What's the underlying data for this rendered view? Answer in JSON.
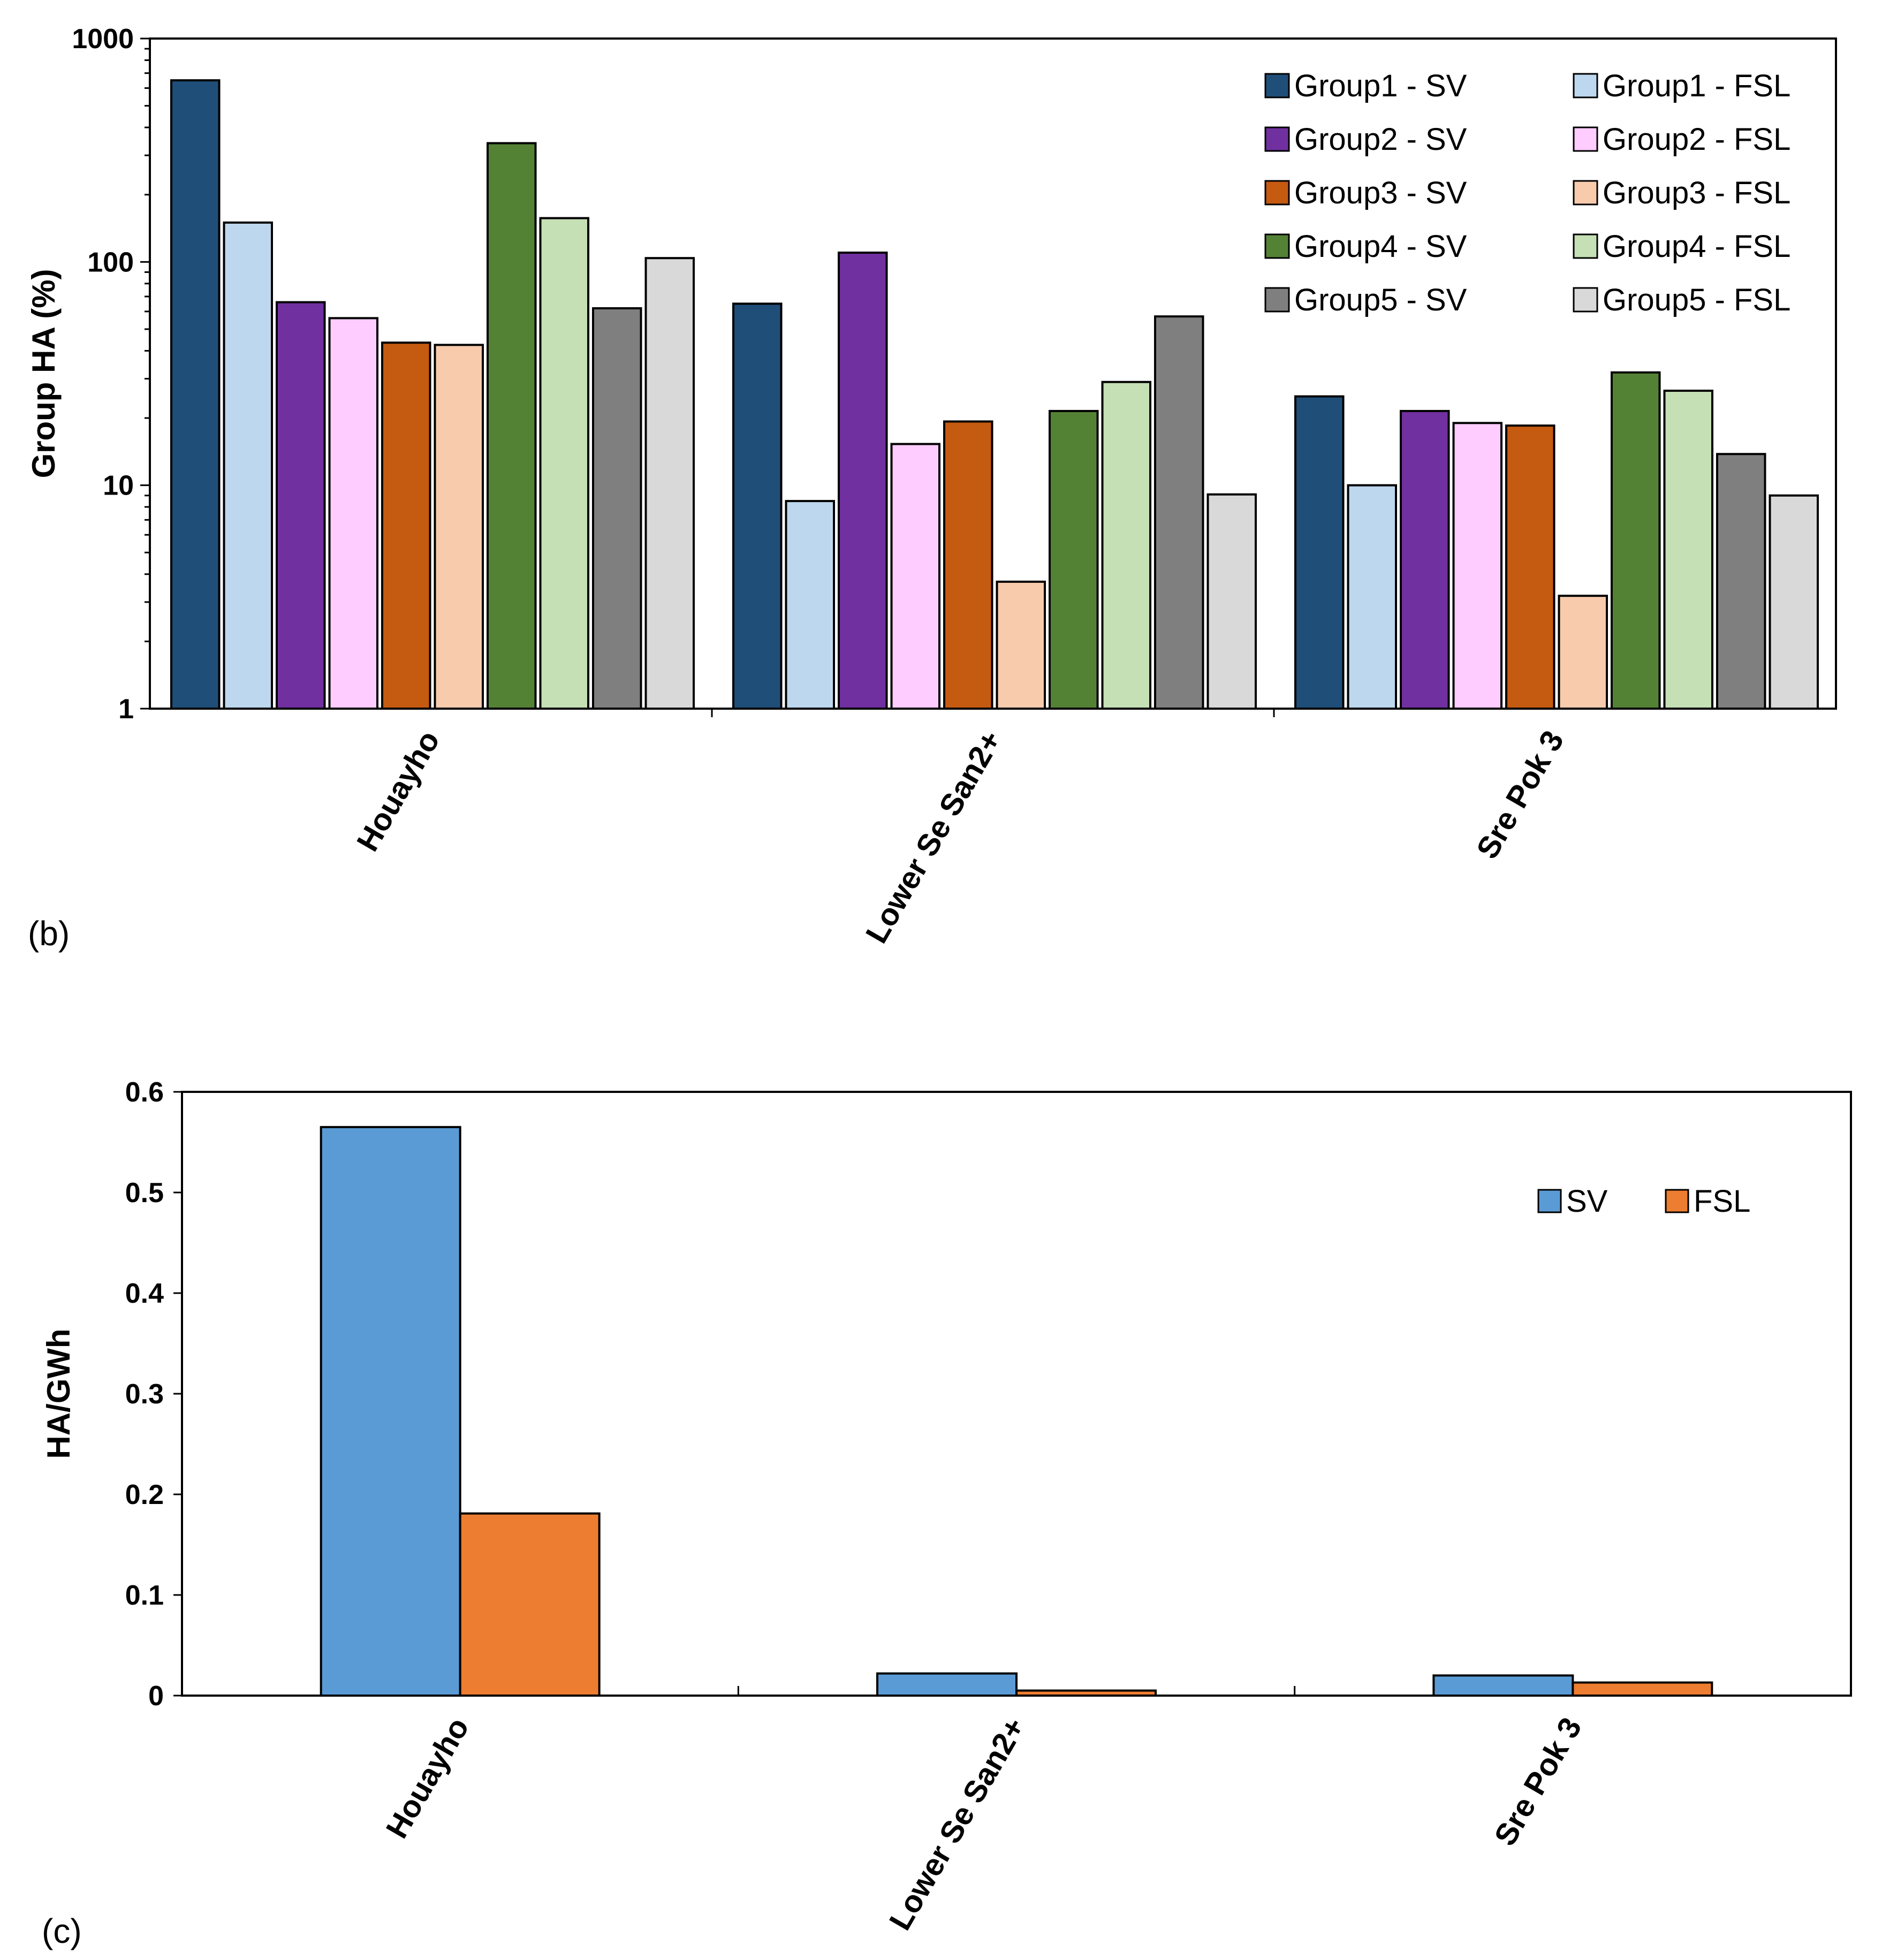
{
  "chart_data": [
    {
      "type": "bar",
      "panel_label": "(b)",
      "ylabel": "Group HA (%)",
      "yscale": "log",
      "ylim": [
        1,
        1000
      ],
      "yticks": [
        "1",
        "10",
        "100",
        "1000"
      ],
      "categories": [
        "Houayho",
        "Lower Se San2+",
        "Sre Pok 3"
      ],
      "legend_position": "top-right",
      "series": [
        {
          "name": "Group1  - SV",
          "color": "#1F4E79",
          "values": [
            650,
            65,
            25
          ]
        },
        {
          "name": "Group1  - FSL",
          "color": "#BDD7EE",
          "values": [
            150,
            8.5,
            10
          ]
        },
        {
          "name": "Group2   - SV",
          "color": "#7030A0",
          "values": [
            66,
            110,
            21.5
          ]
        },
        {
          "name": "Group2   - FSL",
          "color": "#FFCCFF",
          "values": [
            56,
            15.3,
            19
          ]
        },
        {
          "name": "Group3  - SV",
          "color": "#C55A11",
          "values": [
            43.5,
            19.3,
            18.5
          ]
        },
        {
          "name": "Group3  - FSL",
          "color": "#F8CBAD",
          "values": [
            42.5,
            3.7,
            3.2
          ]
        },
        {
          "name": "Group4  - SV",
          "color": "#548235",
          "values": [
            340,
            21.5,
            32
          ]
        },
        {
          "name": "Group4  - FSL",
          "color": "#C5E0B4",
          "values": [
            157,
            29,
            26.5
          ]
        },
        {
          "name": "Group5  - SV",
          "color": "#7F7F7F",
          "values": [
            62,
            57,
            13.8
          ]
        },
        {
          "name": "Group5  - FSL",
          "color": "#D9D9D9",
          "values": [
            104,
            9.1,
            9
          ]
        }
      ]
    },
    {
      "type": "bar",
      "panel_label": "(c)",
      "ylabel": "HA/GWh",
      "ylim": [
        0,
        0.6
      ],
      "yticks": [
        "0",
        "0.1",
        "0.2",
        "0.3",
        "0.4",
        "0.5",
        "0.6"
      ],
      "categories": [
        "Houayho",
        "Lower Se San2+",
        "Sre Pok 3"
      ],
      "legend_position": "top-right",
      "series": [
        {
          "name": "SV",
          "color": "#5B9BD5",
          "values": [
            0.565,
            0.022,
            0.02
          ]
        },
        {
          "name": "FSL",
          "color": "#ED7D31",
          "values": [
            0.181,
            0.005,
            0.013
          ]
        }
      ]
    }
  ]
}
